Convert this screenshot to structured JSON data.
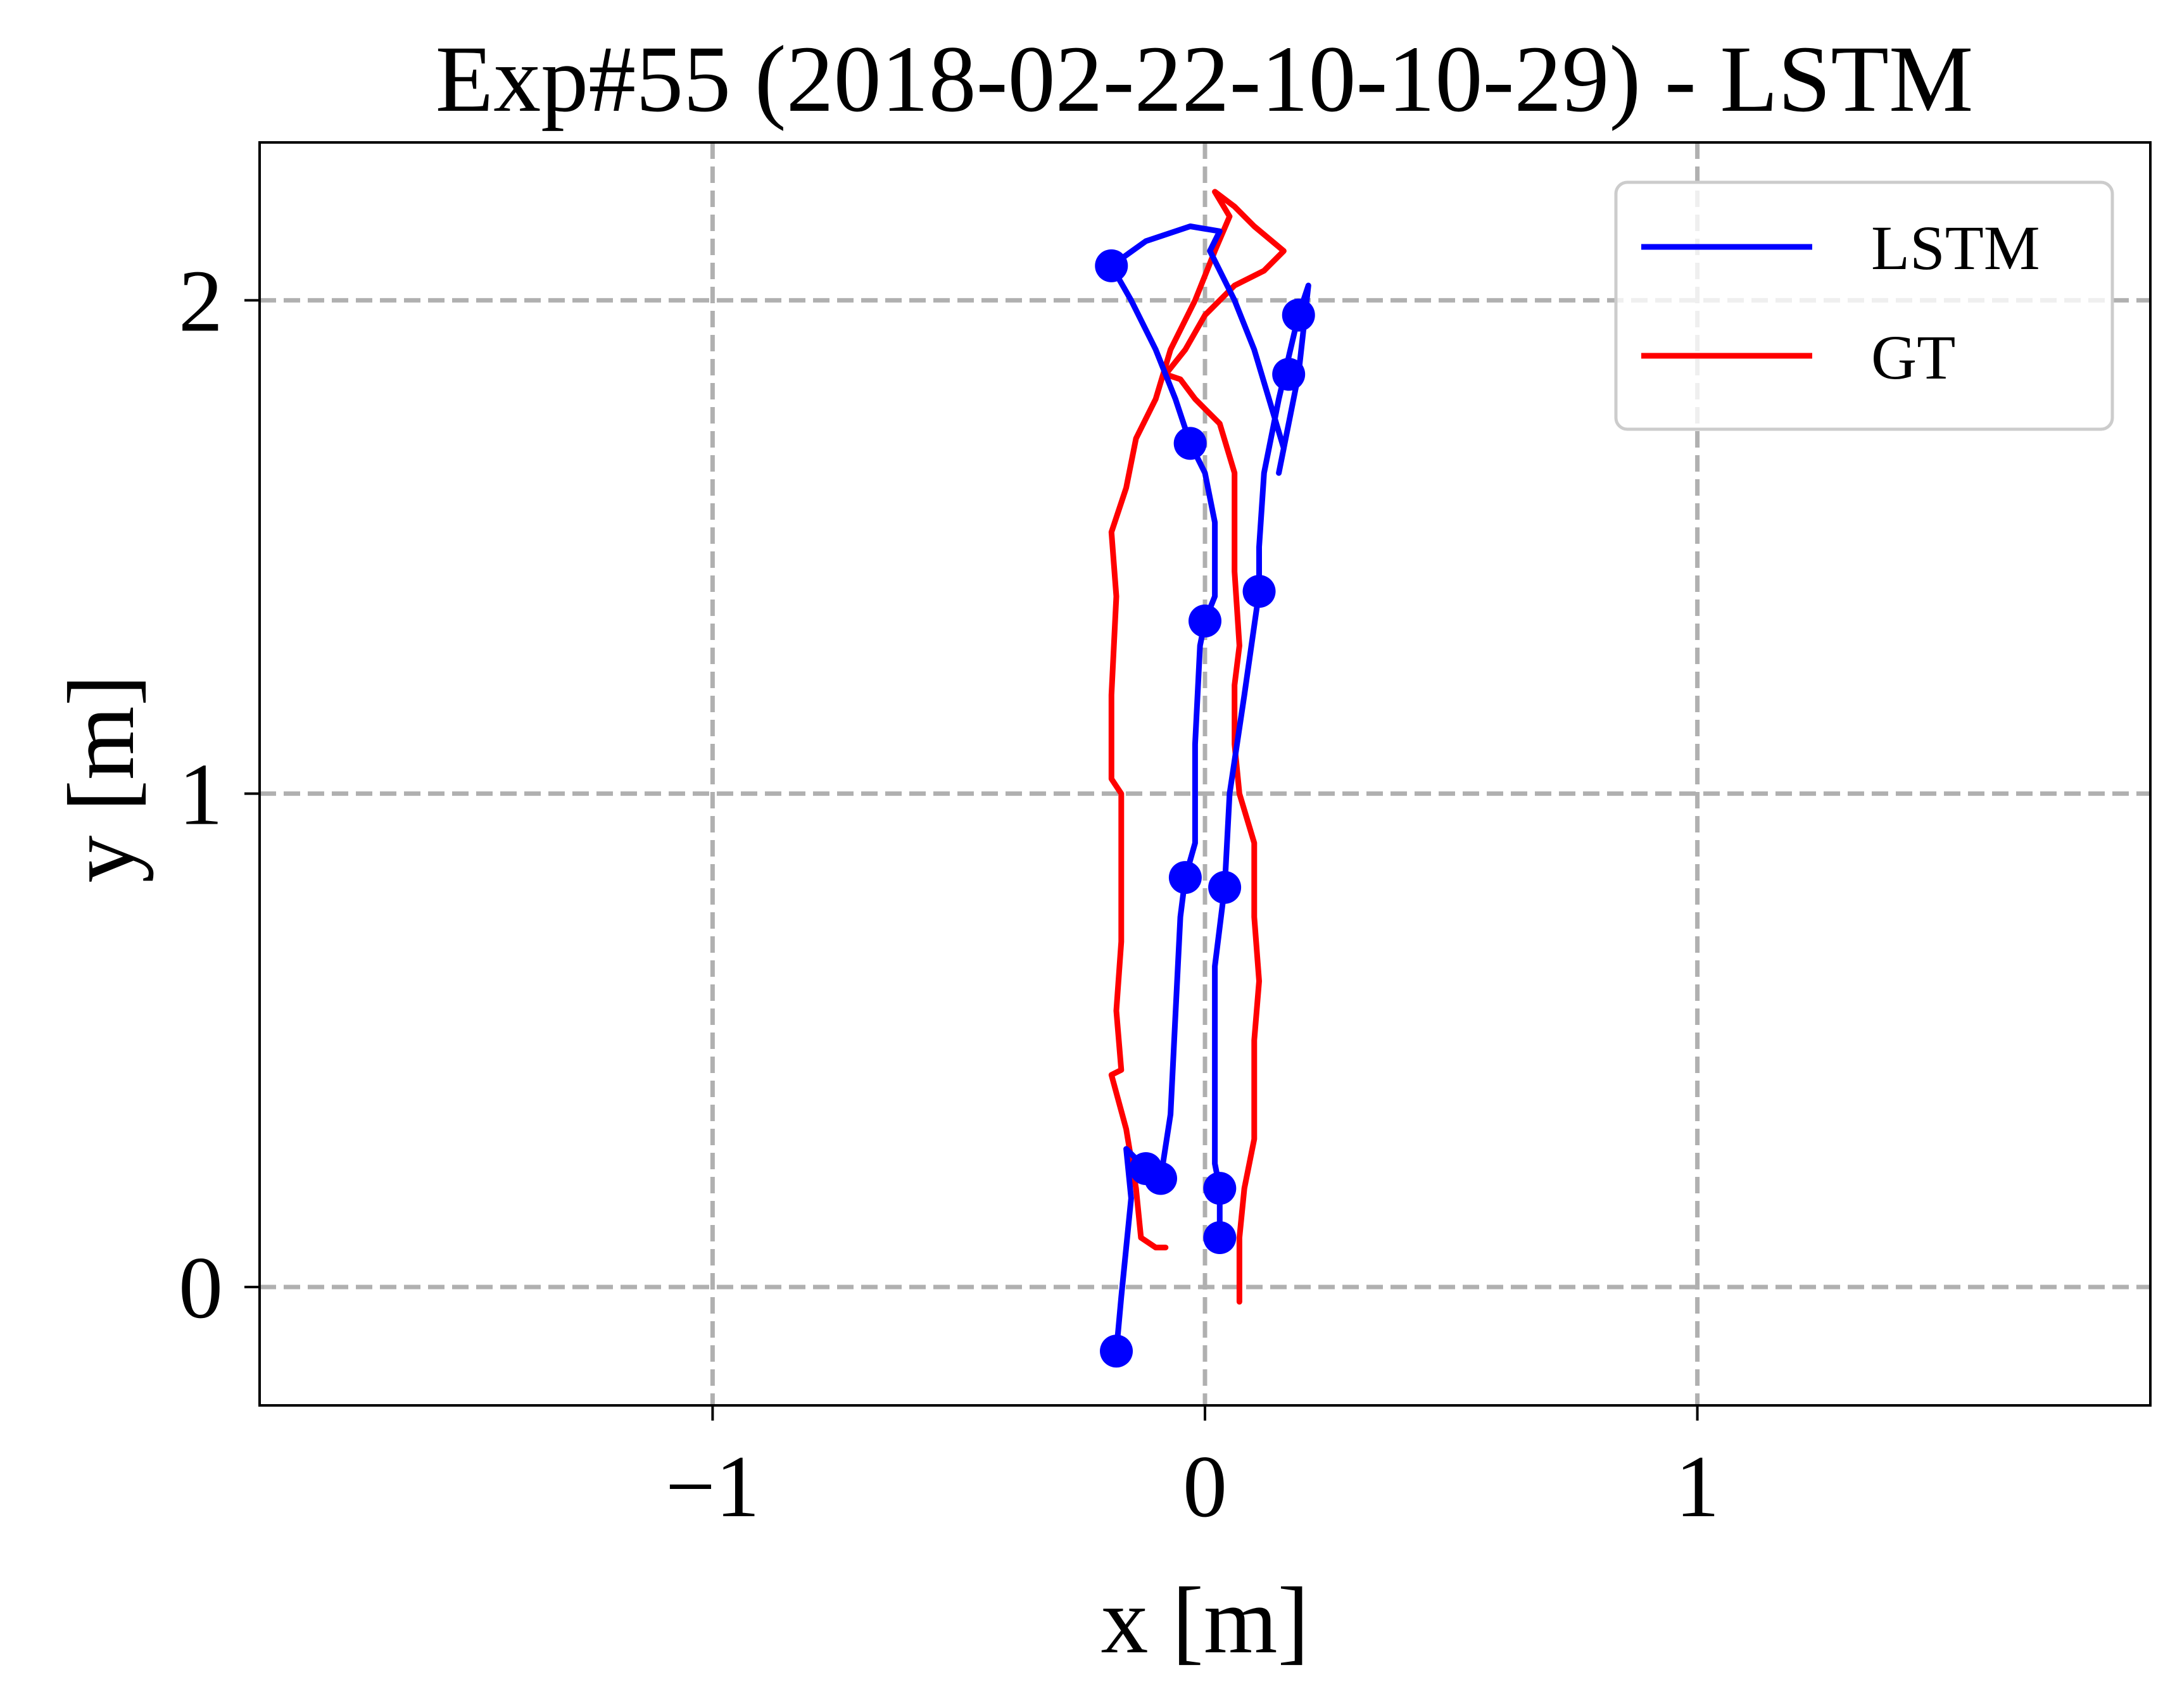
{
  "chart_data": {
    "type": "line",
    "title": "Exp#55 (2018-02-22-10-10-29) - LSTM",
    "xlabel": "x [m]",
    "ylabel": "y [m]",
    "xlim": [
      -1.92,
      1.92
    ],
    "ylim": [
      -0.24,
      2.32
    ],
    "xticks": [
      -1,
      0,
      1
    ],
    "xtick_labels": [
      "−1",
      "0",
      "1"
    ],
    "yticks": [
      0,
      1,
      2
    ],
    "ytick_labels": [
      "0",
      "1",
      "2"
    ],
    "grid": true,
    "legend_position": "top-right",
    "series": [
      {
        "name": "LSTM",
        "color": "#0000ff",
        "points": [
          [
            -0.18,
            -0.13
          ],
          [
            -0.17,
            -0.02
          ],
          [
            -0.16,
            0.08
          ],
          [
            -0.15,
            0.18
          ],
          [
            -0.16,
            0.28
          ],
          [
            -0.12,
            0.24
          ],
          [
            -0.09,
            0.22
          ],
          [
            -0.07,
            0.35
          ],
          [
            -0.06,
            0.55
          ],
          [
            -0.05,
            0.75
          ],
          [
            -0.04,
            0.83
          ],
          [
            -0.02,
            0.9
          ],
          [
            -0.02,
            1.1
          ],
          [
            -0.01,
            1.3
          ],
          [
            0.0,
            1.35
          ],
          [
            0.02,
            1.4
          ],
          [
            0.02,
            1.55
          ],
          [
            0.0,
            1.65
          ],
          [
            -0.03,
            1.71
          ],
          [
            -0.06,
            1.8
          ],
          [
            -0.1,
            1.9
          ],
          [
            -0.15,
            2.0
          ],
          [
            -0.19,
            2.07
          ],
          [
            -0.12,
            2.12
          ],
          [
            -0.03,
            2.15
          ],
          [
            0.03,
            2.14
          ],
          [
            0.01,
            2.1
          ],
          [
            0.06,
            2.0
          ],
          [
            0.1,
            1.9
          ],
          [
            0.13,
            1.8
          ],
          [
            0.16,
            1.7
          ],
          [
            0.15,
            1.65
          ],
          [
            0.19,
            1.85
          ],
          [
            0.21,
            2.03
          ],
          [
            0.19,
            1.97
          ],
          [
            0.15,
            1.8
          ],
          [
            0.12,
            1.65
          ],
          [
            0.11,
            1.5
          ],
          [
            0.11,
            1.41
          ],
          [
            0.08,
            1.2
          ],
          [
            0.05,
            1.0
          ],
          [
            0.04,
            0.81
          ],
          [
            0.02,
            0.65
          ],
          [
            0.02,
            0.45
          ],
          [
            0.02,
            0.25
          ],
          [
            0.03,
            0.2
          ],
          [
            0.03,
            0.1
          ]
        ],
        "markers": [
          [
            -0.18,
            -0.13
          ],
          [
            -0.12,
            0.24
          ],
          [
            -0.09,
            0.22
          ],
          [
            -0.04,
            0.83
          ],
          [
            0.0,
            1.35
          ],
          [
            -0.03,
            1.71
          ],
          [
            -0.19,
            2.07
          ],
          [
            0.19,
            1.97
          ],
          [
            0.17,
            1.85
          ],
          [
            0.11,
            1.41
          ],
          [
            0.04,
            0.81
          ],
          [
            0.03,
            0.2
          ],
          [
            0.03,
            0.1
          ]
        ]
      },
      {
        "name": "GT",
        "color": "#ff0000",
        "points": [
          [
            0.07,
            -0.03
          ],
          [
            0.07,
            0.1
          ],
          [
            0.08,
            0.2
          ],
          [
            0.1,
            0.3
          ],
          [
            0.1,
            0.4
          ],
          [
            0.1,
            0.5
          ],
          [
            0.11,
            0.62
          ],
          [
            0.1,
            0.75
          ],
          [
            0.1,
            0.9
          ],
          [
            0.07,
            1.0
          ],
          [
            0.06,
            1.1
          ],
          [
            0.06,
            1.22
          ],
          [
            0.07,
            1.3
          ],
          [
            0.06,
            1.45
          ],
          [
            0.06,
            1.55
          ],
          [
            0.06,
            1.65
          ],
          [
            0.03,
            1.75
          ],
          [
            -0.02,
            1.8
          ],
          [
            -0.05,
            1.84
          ],
          [
            -0.08,
            1.85
          ],
          [
            -0.04,
            1.9
          ],
          [
            0.0,
            1.97
          ],
          [
            0.06,
            2.03
          ],
          [
            0.12,
            2.06
          ],
          [
            0.16,
            2.1
          ],
          [
            0.1,
            2.15
          ],
          [
            0.06,
            2.19
          ],
          [
            0.02,
            2.22
          ],
          [
            0.05,
            2.17
          ],
          [
            0.02,
            2.1
          ],
          [
            -0.02,
            2.0
          ],
          [
            -0.07,
            1.9
          ],
          [
            -0.1,
            1.8
          ],
          [
            -0.14,
            1.72
          ],
          [
            -0.16,
            1.62
          ],
          [
            -0.19,
            1.53
          ],
          [
            -0.18,
            1.4
          ],
          [
            -0.19,
            1.2
          ],
          [
            -0.19,
            1.03
          ],
          [
            -0.17,
            1.0
          ],
          [
            -0.17,
            0.85
          ],
          [
            -0.17,
            0.7
          ],
          [
            -0.18,
            0.56
          ],
          [
            -0.17,
            0.44
          ],
          [
            -0.19,
            0.43
          ],
          [
            -0.16,
            0.32
          ],
          [
            -0.14,
            0.2
          ],
          [
            -0.13,
            0.1
          ],
          [
            -0.1,
            0.08
          ],
          [
            -0.08,
            0.08
          ]
        ]
      }
    ]
  }
}
